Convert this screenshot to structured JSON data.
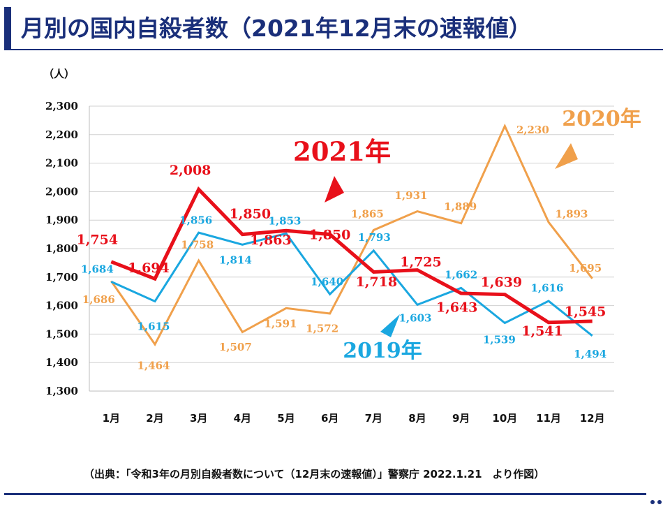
{
  "page": {
    "title": "月別の国内自殺者数（2021年12月末の速報値）",
    "source": "（出典：「令和3年の月別自殺者数について（12月末の速報値）」警察庁 2022.1.21　より作図）"
  },
  "chart_data": {
    "type": "line",
    "title": "月別の国内自殺者数（2021年12月末の速報値）",
    "xlabel": "",
    "ylabel": "（人）",
    "categories": [
      "1月",
      "2月",
      "3月",
      "4月",
      "5月",
      "6月",
      "7月",
      "8月",
      "9月",
      "10月",
      "11月",
      "12月"
    ],
    "ylim": [
      1300,
      2300
    ],
    "yticks": [
      1300,
      1400,
      1500,
      1600,
      1700,
      1800,
      1900,
      2000,
      2100,
      2200,
      2300
    ],
    "ytick_labels": [
      "1,300",
      "1,400",
      "1,500",
      "1,600",
      "1,700",
      "1,800",
      "1,900",
      "2,000",
      "2,100",
      "2,200",
      "2,300"
    ],
    "grid": "horizontal",
    "series": [
      {
        "name": "2019年",
        "color": "#1aa7e0",
        "values": [
          1684,
          1615,
          1856,
          1814,
          1853,
          1640,
          1793,
          1603,
          1662,
          1539,
          1616,
          1494
        ],
        "labels": [
          "1,684",
          "1,615",
          "1,856",
          "1,814",
          "1,853",
          "1,640",
          "1,793",
          "1,603",
          "1,662",
          "1,539",
          "1,616",
          "1,494"
        ]
      },
      {
        "name": "2020年",
        "color": "#f0a04b",
        "values": [
          1686,
          1464,
          1758,
          1507,
          1591,
          1572,
          1865,
          1931,
          1889,
          2230,
          1893,
          1695
        ],
        "labels": [
          "1,686",
          "1,464",
          "1,758",
          "1,507",
          "1,591",
          "1,572",
          "1,865",
          "1,931",
          "1,889",
          "2,230",
          "1,893",
          "1,695"
        ]
      },
      {
        "name": "2021年",
        "color": "#e8101a",
        "values": [
          1754,
          1694,
          2008,
          1850,
          1863,
          1850,
          1718,
          1725,
          1643,
          1639,
          1541,
          1545
        ],
        "labels": [
          "1,754",
          "1,694",
          "2,008",
          "1,850",
          "1,863",
          "1,850",
          "1,718",
          "1,725",
          "1,643",
          "1,639",
          "1,541",
          "1,545"
        ]
      }
    ]
  }
}
